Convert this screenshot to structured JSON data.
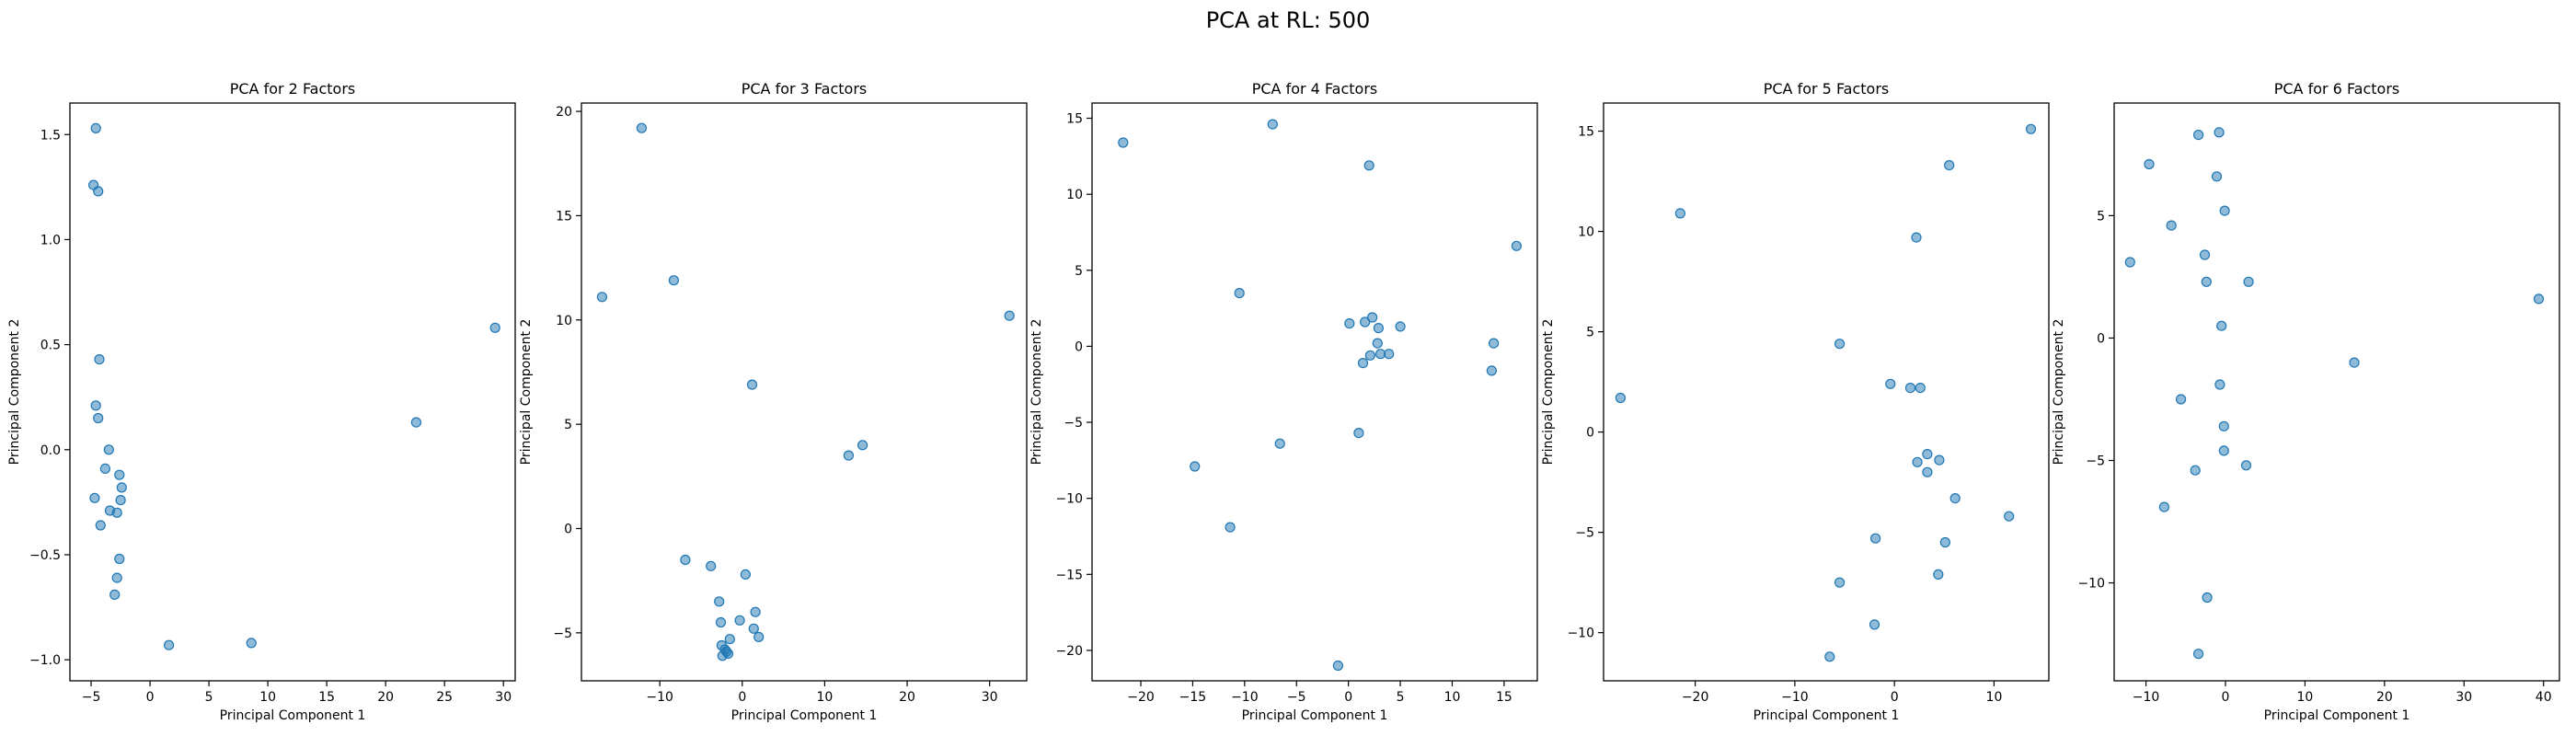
{
  "suptitle": "PCA at RL: 500",
  "style": {
    "point_color": "#1f77b4",
    "point_alpha": 0.5
  },
  "chart_data": [
    {
      "type": "scatter",
      "title": "PCA for 2 Factors",
      "xlabel": "Principal Component 1",
      "ylabel": "Principal Component 2",
      "xlim": [
        -6.8,
        31.0
      ],
      "ylim": [
        -1.1,
        1.65
      ],
      "xticks": [
        -5,
        0,
        5,
        10,
        15,
        20,
        25,
        30
      ],
      "yticks": [
        -1.0,
        -0.5,
        0.0,
        0.5,
        1.0,
        1.5
      ],
      "ytick_labels": [
        "−1.0",
        "−0.5",
        "0.0",
        "0.5",
        "1.0",
        "1.5"
      ],
      "grid": false,
      "points": [
        [
          -4.6,
          1.53
        ],
        [
          -4.8,
          1.26
        ],
        [
          -4.4,
          1.23
        ],
        [
          -4.3,
          0.43
        ],
        [
          -4.6,
          0.21
        ],
        [
          -4.4,
          0.15
        ],
        [
          -3.5,
          0.0
        ],
        [
          -3.8,
          -0.09
        ],
        [
          -2.6,
          -0.12
        ],
        [
          -2.4,
          -0.18
        ],
        [
          -4.7,
          -0.23
        ],
        [
          -2.5,
          -0.24
        ],
        [
          -3.4,
          -0.29
        ],
        [
          -2.8,
          -0.3
        ],
        [
          -4.2,
          -0.36
        ],
        [
          -2.6,
          -0.52
        ],
        [
          -2.8,
          -0.61
        ],
        [
          -3.0,
          -0.69
        ],
        [
          1.6,
          -0.93
        ],
        [
          8.6,
          -0.92
        ],
        [
          22.6,
          0.13
        ],
        [
          29.3,
          0.58
        ]
      ]
    },
    {
      "type": "scatter",
      "title": "PCA for 3 Factors",
      "xlabel": "Principal Component 1",
      "ylabel": "Principal Component 2",
      "xlim": [
        -19.5,
        34.5
      ],
      "ylim": [
        -7.3,
        20.4
      ],
      "xticks": [
        -10,
        0,
        10,
        20,
        30
      ],
      "yticks": [
        -5,
        0,
        5,
        10,
        15,
        20
      ],
      "ytick_labels": [
        "−5",
        "0",
        "5",
        "10",
        "15",
        "20"
      ],
      "grid": false,
      "points": [
        [
          -12.2,
          19.2
        ],
        [
          -17.0,
          11.1
        ],
        [
          -8.3,
          11.9
        ],
        [
          1.2,
          6.9
        ],
        [
          32.4,
          10.2
        ],
        [
          14.6,
          4.0
        ],
        [
          12.9,
          3.5
        ],
        [
          -6.9,
          -1.5
        ],
        [
          -3.8,
          -1.8
        ],
        [
          0.4,
          -2.2
        ],
        [
          -2.8,
          -3.5
        ],
        [
          1.6,
          -4.0
        ],
        [
          -2.6,
          -4.5
        ],
        [
          -0.3,
          -4.4
        ],
        [
          1.4,
          -4.8
        ],
        [
          2.0,
          -5.2
        ],
        [
          -1.5,
          -5.3
        ],
        [
          -2.5,
          -5.6
        ],
        [
          -2.1,
          -5.8
        ],
        [
          -1.7,
          -6.0
        ],
        [
          -2.4,
          -6.1
        ],
        [
          -1.9,
          -5.9
        ]
      ]
    },
    {
      "type": "scatter",
      "title": "PCA for 4 Factors",
      "xlabel": "Principal Component 1",
      "ylabel": "Principal Component 2",
      "xlim": [
        -24.7,
        18.2
      ],
      "ylim": [
        -22.0,
        16.0
      ],
      "xticks": [
        -20,
        -15,
        -10,
        -5,
        0,
        5,
        10,
        15
      ],
      "yticks": [
        -20,
        -15,
        -10,
        -5,
        0,
        5,
        10,
        15
      ],
      "ytick_labels": [
        "−20",
        "−15",
        "−10",
        "−5",
        "0",
        "5",
        "10",
        "15"
      ],
      "grid": false,
      "points": [
        [
          -21.7,
          13.4
        ],
        [
          -7.3,
          14.6
        ],
        [
          2.0,
          11.9
        ],
        [
          16.2,
          6.6
        ],
        [
          -10.5,
          3.5
        ],
        [
          0.1,
          1.5
        ],
        [
          1.6,
          1.6
        ],
        [
          2.3,
          1.9
        ],
        [
          2.9,
          1.2
        ],
        [
          5.0,
          1.3
        ],
        [
          14.0,
          0.2
        ],
        [
          2.8,
          0.2
        ],
        [
          3.1,
          -0.5
        ],
        [
          3.9,
          -0.5
        ],
        [
          2.1,
          -0.6
        ],
        [
          1.4,
          -1.1
        ],
        [
          13.8,
          -1.6
        ],
        [
          1.0,
          -5.7
        ],
        [
          -6.6,
          -6.4
        ],
        [
          -14.8,
          -7.9
        ],
        [
          -11.4,
          -11.9
        ],
        [
          -1.0,
          -21.0
        ]
      ]
    },
    {
      "type": "scatter",
      "title": "PCA for 5 Factors",
      "xlabel": "Principal Component 1",
      "ylabel": "Principal Component 2",
      "xlim": [
        -29.2,
        15.5
      ],
      "ylim": [
        -12.4,
        16.4
      ],
      "xticks": [
        -20,
        -10,
        0,
        10
      ],
      "yticks": [
        -10,
        -5,
        0,
        5,
        10,
        15
      ],
      "ytick_labels": [
        "−10",
        "−5",
        "0",
        "5",
        "10",
        "15"
      ],
      "grid": false,
      "points": [
        [
          13.7,
          15.1
        ],
        [
          5.5,
          13.3
        ],
        [
          -21.5,
          10.9
        ],
        [
          2.2,
          9.7
        ],
        [
          -5.5,
          4.4
        ],
        [
          -0.4,
          2.4
        ],
        [
          1.6,
          2.2
        ],
        [
          2.6,
          2.2
        ],
        [
          -27.5,
          1.7
        ],
        [
          3.3,
          -1.1
        ],
        [
          4.5,
          -1.4
        ],
        [
          2.3,
          -1.5
        ],
        [
          3.3,
          -2.0
        ],
        [
          6.1,
          -3.3
        ],
        [
          11.5,
          -4.2
        ],
        [
          -1.9,
          -5.3
        ],
        [
          5.1,
          -5.5
        ],
        [
          4.4,
          -7.1
        ],
        [
          -5.5,
          -7.5
        ],
        [
          -2.0,
          -9.6
        ],
        [
          -6.5,
          -11.2
        ]
      ]
    },
    {
      "type": "scatter",
      "title": "PCA for 6 Factors",
      "xlabel": "Principal Component 1",
      "ylabel": "Principal Component 2",
      "xlim": [
        -14.0,
        42.0
      ],
      "ylim": [
        -14.0,
        9.6
      ],
      "xticks": [
        -10,
        0,
        10,
        20,
        30,
        40
      ],
      "yticks": [
        -10,
        -5,
        0,
        5
      ],
      "ytick_labels": [
        "−10",
        "−5",
        "0",
        "5"
      ],
      "grid": false,
      "points": [
        [
          -3.4,
          8.3
        ],
        [
          -0.8,
          8.4
        ],
        [
          -9.6,
          7.1
        ],
        [
          -1.1,
          6.6
        ],
        [
          -6.8,
          4.6
        ],
        [
          -0.1,
          5.2
        ],
        [
          -2.6,
          3.4
        ],
        [
          -12.0,
          3.1
        ],
        [
          -2.4,
          2.3
        ],
        [
          2.9,
          2.3
        ],
        [
          -0.5,
          0.5
        ],
        [
          39.4,
          1.6
        ],
        [
          16.2,
          -1.0
        ],
        [
          -0.7,
          -1.9
        ],
        [
          -5.6,
          -2.5
        ],
        [
          -0.2,
          -3.6
        ],
        [
          -0.2,
          -4.6
        ],
        [
          2.6,
          -5.2
        ],
        [
          -3.8,
          -5.4
        ],
        [
          -7.7,
          -6.9
        ],
        [
          -2.3,
          -10.6
        ],
        [
          -3.4,
          -12.9
        ]
      ]
    }
  ]
}
